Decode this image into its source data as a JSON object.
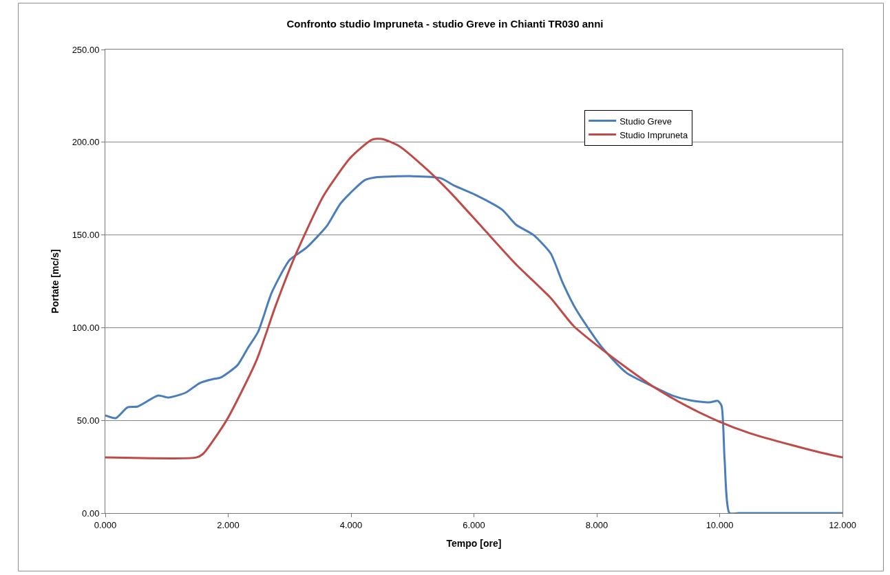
{
  "chart_data": {
    "type": "line",
    "title": "Confronto studio Impruneta - studio Greve in Chianti TR030 anni",
    "xlabel": "Tempo [ore]",
    "ylabel": "Portate [mc/s]",
    "series": [
      {
        "name": "Studio Greve",
        "color": "#4a7ebb",
        "x": [
          0,
          0.17,
          0.36,
          0.53,
          0.86,
          1.03,
          1.31,
          1.53,
          1.76,
          1.87,
          2.15,
          2.32,
          2.49,
          2.71,
          3.0,
          3.27,
          3.61,
          3.83,
          4.22,
          4.39,
          5.0,
          5.46,
          5.68,
          6.02,
          6.46,
          6.69,
          6.97,
          7.25,
          7.44,
          7.66,
          8.07,
          8.48,
          8.93,
          9.23,
          9.52,
          9.83,
          9.97,
          10.03,
          10.08,
          10.16,
          10.31,
          12
        ],
        "values": [
          52.7,
          51.2,
          57,
          57.5,
          63.4,
          62.3,
          65,
          70,
          72.3,
          73,
          79.7,
          89,
          98,
          119,
          136.5,
          143,
          155,
          167,
          179.5,
          181,
          181.7,
          180.6,
          176.6,
          171.7,
          163.6,
          155.4,
          150,
          140,
          124.6,
          110,
          90,
          75.7,
          68,
          63.4,
          60.8,
          59.7,
          60.5,
          58,
          29.3,
          0,
          0,
          0
        ]
      },
      {
        "name": "Studio Impruneta",
        "color": "#be4b48",
        "x": [
          0,
          1.48,
          1.59,
          1.98,
          2.46,
          2.77,
          3.1,
          3.55,
          4.0,
          4.34,
          4.5,
          4.78,
          5.23,
          5.62,
          6.13,
          6.69,
          7.25,
          7.62,
          8.07,
          8.5,
          8.93,
          9.45,
          9.97,
          10.5,
          11.17,
          11.6,
          12
        ],
        "values": [
          30,
          30,
          31.9,
          50.4,
          82.3,
          111.6,
          139.5,
          171,
          192,
          201.4,
          201.8,
          198,
          185.5,
          172.8,
          154.3,
          134,
          116,
          101,
          88.7,
          78,
          68,
          58,
          49.7,
          43,
          36.7,
          33,
          30
        ]
      }
    ],
    "xlim": [
      0,
      12
    ],
    "xticks": [
      {
        "value": 0,
        "label": "0.000"
      },
      {
        "value": 2,
        "label": "2.000"
      },
      {
        "value": 4,
        "label": "4.000"
      },
      {
        "value": 6,
        "label": "6.000"
      },
      {
        "value": 8,
        "label": "8.000"
      },
      {
        "value": 10,
        "label": "10.000"
      },
      {
        "value": 12,
        "label": "12.000"
      }
    ],
    "ylim": [
      0,
      250
    ],
    "yticks": [
      {
        "value": 0,
        "label": "0.00"
      },
      {
        "value": 50,
        "label": "50.00"
      },
      {
        "value": 100,
        "label": "100.00"
      },
      {
        "value": 150,
        "label": "150.00"
      },
      {
        "value": 200,
        "label": "200.00"
      },
      {
        "value": 250,
        "label": "250.00"
      }
    ],
    "grid": "y",
    "legend": "top right",
    "marker": "none",
    "line_style": "solid"
  }
}
